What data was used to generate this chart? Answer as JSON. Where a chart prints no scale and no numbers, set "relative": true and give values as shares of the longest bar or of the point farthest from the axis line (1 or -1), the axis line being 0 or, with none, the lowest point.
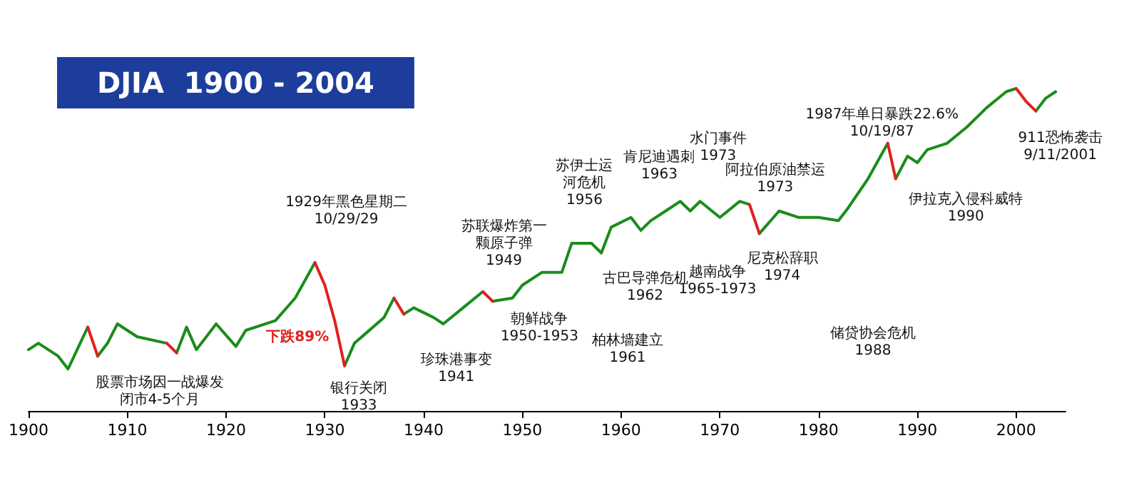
{
  "chart_data": {
    "type": "line",
    "title": "DJIA  1900 - 2004",
    "relative": true,
    "xlim": [
      1900,
      2005
    ],
    "xticks": [
      1900,
      1910,
      1920,
      1930,
      1940,
      1950,
      1960,
      1970,
      1980,
      1990,
      2000
    ],
    "grid": false,
    "marker": "none",
    "line_style": "solid",
    "series": [
      {
        "color": "#1a8c1a",
        "x": [
          1900,
          1901,
          1903,
          1904,
          1906,
          null,
          1907,
          1908,
          1909,
          1911,
          1914,
          null,
          1915,
          1916,
          1917,
          1919,
          1921,
          1922,
          1925,
          1927,
          1929,
          null,
          1932,
          1933,
          1936,
          1937,
          null,
          1938,
          1939,
          1941,
          1942,
          1944,
          1946,
          null,
          1947,
          1949,
          1950,
          1952,
          1954,
          1955,
          1957,
          1958,
          1959,
          1961,
          1962,
          1963,
          1965,
          1966,
          1967,
          1968,
          1970,
          1972,
          1973,
          null,
          1974,
          1976,
          1978,
          1980,
          1982,
          1983,
          1985,
          1987,
          null,
          1987.8,
          1989,
          1990,
          1991,
          1993,
          1995,
          1997,
          1999,
          2000,
          null,
          2002,
          2003,
          2004
        ],
        "values": [
          0.19,
          0.21,
          0.17,
          0.13,
          0.26,
          null,
          0.17,
          0.21,
          0.27,
          0.23,
          0.21,
          null,
          0.18,
          0.26,
          0.19,
          0.27,
          0.2,
          0.25,
          0.28,
          0.35,
          0.46,
          null,
          0.14,
          0.21,
          0.29,
          0.35,
          null,
          0.3,
          0.32,
          0.29,
          0.27,
          0.32,
          0.37,
          null,
          0.34,
          0.35,
          0.39,
          0.43,
          0.43,
          0.52,
          0.52,
          0.49,
          0.57,
          0.6,
          0.56,
          0.59,
          0.63,
          0.65,
          0.62,
          0.65,
          0.6,
          0.65,
          0.64,
          null,
          0.55,
          0.62,
          0.6,
          0.6,
          0.59,
          0.63,
          0.72,
          0.83,
          null,
          0.72,
          0.79,
          0.77,
          0.81,
          0.83,
          0.88,
          0.94,
          0.99,
          1,
          null,
          0.93,
          0.97,
          0.99
        ]
      },
      {
        "color": "#e02020",
        "x": [
          1906,
          1907
        ],
        "values": [
          0.26,
          0.17
        ]
      },
      {
        "color": "#e02020",
        "x": [
          1914,
          1915
        ],
        "values": [
          0.21,
          0.18
        ]
      },
      {
        "color": "#e02020",
        "x": [
          1929,
          1930,
          1931,
          1932
        ],
        "values": [
          0.46,
          0.39,
          0.28,
          0.14
        ]
      },
      {
        "color": "#e02020",
        "x": [
          1937,
          1938
        ],
        "values": [
          0.35,
          0.3
        ]
      },
      {
        "color": "#e02020",
        "x": [
          1946,
          1947
        ],
        "values": [
          0.37,
          0.34
        ]
      },
      {
        "color": "#e02020",
        "x": [
          1973,
          1974
        ],
        "values": [
          0.64,
          0.55
        ]
      },
      {
        "color": "#e02020",
        "x": [
          1987,
          1987.8
        ],
        "values": [
          0.83,
          0.72
        ]
      },
      {
        "color": "#e02020",
        "x": [
          2000,
          2001,
          2002
        ],
        "values": [
          1,
          0.96,
          0.93
        ]
      }
    ],
    "annotations": [
      {
        "text": "股票市场因一战爆发闭市4-5个月",
        "x": 1914,
        "y": 0.21
      },
      {
        "text": "1929年黑色星期二\n10/29/29",
        "x": 1929,
        "y": 0.46
      },
      {
        "text": "下跌89%",
        "x": 1931,
        "y": 0.28
      },
      {
        "text": "银行关闭\n1933",
        "x": 1932,
        "y": 0.14
      },
      {
        "text": "珍珠港事变\n1941",
        "x": 1941,
        "y": 0.29
      },
      {
        "text": "苏联爆炸第一颗原子弹\n1949",
        "x": 1949,
        "y": 0.35
      },
      {
        "text": "朝鲜战争\n1950-1953",
        "x": 1950,
        "y": 0.39
      },
      {
        "text": "苏伊士运河危机\n1956",
        "x": 1956,
        "y": 0.52
      },
      "柏林墙建立\n1961",
      {
        "text": "古巴导弹危机\n1962",
        "x": 1962,
        "y": 0.56
      },
      {
        "text": "肯尼迪遇刺\n1963",
        "x": 1963,
        "y": 0.59
      },
      "越南战争\n1965-1973",
      {
        "text": "水门事件\n1973",
        "x": 1973,
        "y": 0.64
      },
      {
        "text": "阿拉伯原油禁运\n1973",
        "x": 1973,
        "y": 0.64
      },
      {
        "text": "尼克松辞职\n1974",
        "x": 1974,
        "y": 0.55
      },
      {
        "text": "1987年单日暴跌22.6%\n10/19/87",
        "x": 1987,
        "y": 0.83
      },
      "储贷协会危机\n1988",
      {
        "text": "伊拉克入侵科威特\n1990",
        "x": 1990,
        "y": 0.77
      },
      {
        "text": "911恐怖袭击\n9/11/2001",
        "x": 2001,
        "y": 0.96
      }
    ]
  }
}
